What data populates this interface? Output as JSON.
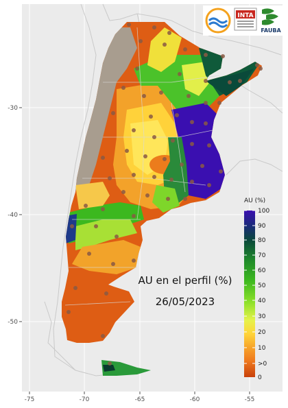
{
  "map": {
    "title_line1": "AU en el perfil (%)",
    "title_line2": "26/05/2023",
    "background_color": "#ebebeb"
  },
  "axes": {
    "x_ticks": [
      "-75",
      "-70",
      "-65",
      "-60",
      "-55"
    ],
    "y_ticks": [
      "-30",
      "-40",
      "-50"
    ]
  },
  "legend": {
    "title": "AU (%)",
    "labels": [
      "100",
      "90",
      "80",
      "70",
      "60",
      "50",
      "40",
      "30",
      "20",
      "10",
      ">0",
      "0"
    ],
    "colors": [
      "#3a0fb0",
      "#003a2e",
      "#0a5a3a",
      "#1f8a2a",
      "#3cb81f",
      "#8de02a",
      "#e6f24a",
      "#ffd43a",
      "#f7a42a",
      "#ef7a1e",
      "#e05a12",
      "#c8400a"
    ]
  },
  "logos": {
    "inta": "INTA",
    "fauba": "FAUBA"
  }
}
